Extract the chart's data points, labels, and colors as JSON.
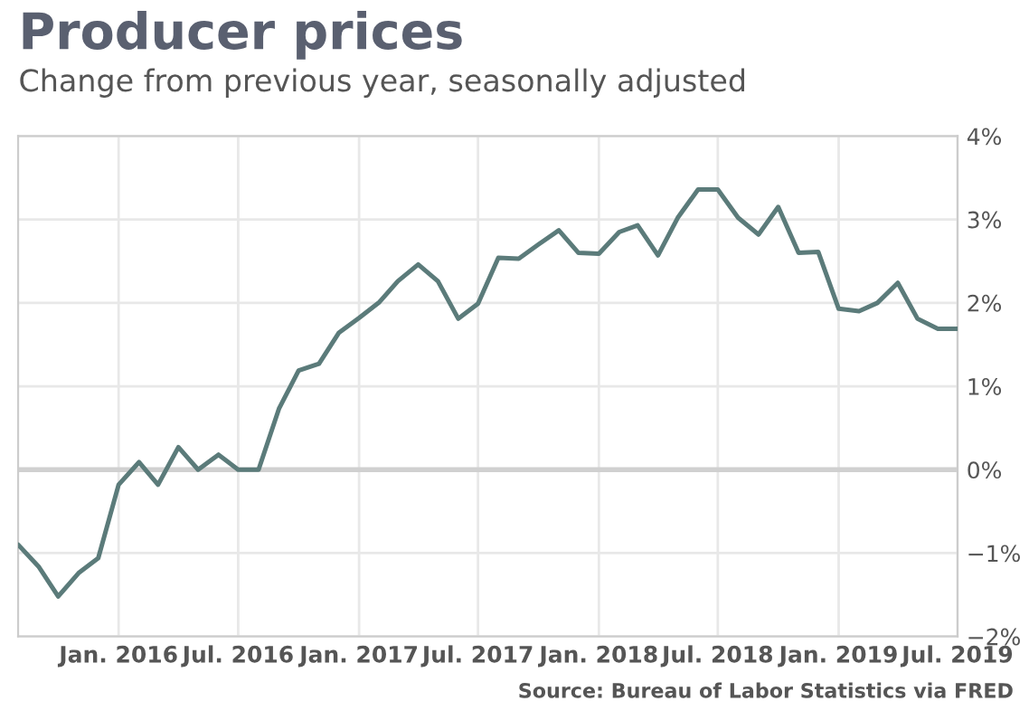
{
  "chart_data": {
    "type": "line",
    "title": "Producer prices",
    "subtitle": "Change from previous year, seasonally adjusted",
    "annotations": [
      "Source: Bureau of Labor Statistics via FRED"
    ],
    "x": [
      "2015-08",
      "2015-09",
      "2015-10",
      "2015-11",
      "2015-12",
      "2016-01",
      "2016-02",
      "2016-03",
      "2016-04",
      "2016-05",
      "2016-06",
      "2016-07",
      "2016-08",
      "2016-09",
      "2016-10",
      "2016-11",
      "2016-12",
      "2017-01",
      "2017-02",
      "2017-03",
      "2017-04",
      "2017-05",
      "2017-06",
      "2017-07",
      "2017-08",
      "2017-09",
      "2017-10",
      "2017-11",
      "2017-12",
      "2018-01",
      "2018-02",
      "2018-03",
      "2018-04",
      "2018-05",
      "2018-06",
      "2018-07",
      "2018-08",
      "2018-09",
      "2018-10",
      "2018-11",
      "2018-12",
      "2019-01",
      "2019-02",
      "2019-03",
      "2019-04",
      "2019-05",
      "2019-06",
      "2019-07"
    ],
    "series": [
      {
        "color": "#5b7b7a",
        "values": [
          -0.9,
          -1.16,
          -1.52,
          -1.24,
          -1.06,
          -0.18,
          0.09,
          -0.18,
          0.27,
          0.0,
          0.18,
          0.0,
          0.0,
          0.73,
          1.19,
          1.27,
          1.64,
          1.82,
          2.01,
          2.26,
          2.46,
          2.26,
          1.81,
          1.99,
          2.54,
          2.53,
          2.7,
          2.87,
          2.6,
          2.59,
          2.85,
          2.93,
          2.57,
          3.02,
          3.36,
          3.36,
          3.02,
          2.82,
          3.15,
          2.6,
          2.61,
          1.93,
          1.9,
          2.0,
          2.24,
          1.81,
          1.69,
          1.69
        ]
      }
    ],
    "xlim": [
      "2015-08",
      "2019-07"
    ],
    "xticks": [
      {
        "value": "2016-01",
        "label": "Jan. 2016"
      },
      {
        "value": "2016-07",
        "label": "Jul. 2016"
      },
      {
        "value": "2017-01",
        "label": "Jan. 2017"
      },
      {
        "value": "2017-07",
        "label": "Jul. 2017"
      },
      {
        "value": "2018-01",
        "label": "Jan. 2018"
      },
      {
        "value": "2018-07",
        "label": "Jul. 2018"
      },
      {
        "value": "2019-01",
        "label": "Jan. 2019"
      },
      {
        "value": "2019-07",
        "label": "Jul. 2019"
      }
    ],
    "ylim": [
      -2,
      4
    ],
    "yticks": [
      {
        "value": -2,
        "label": "−2%"
      },
      {
        "value": -1,
        "label": "−1%"
      },
      {
        "value": 0,
        "label": "0%"
      },
      {
        "value": 1,
        "label": "1%"
      },
      {
        "value": 2,
        "label": "2%"
      },
      {
        "value": 3,
        "label": "3%"
      },
      {
        "value": 4,
        "label": "4%"
      }
    ],
    "ref_lines": [
      {
        "axis": "y",
        "value": 0,
        "color": "#d0d0d0"
      }
    ],
    "grid": true,
    "legend": false,
    "marker": "none",
    "line_style": "solid"
  }
}
